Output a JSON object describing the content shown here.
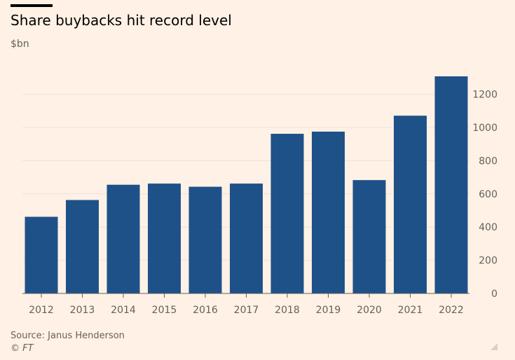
{
  "header": {
    "title": "Share buybacks hit record level",
    "unit": "$bn"
  },
  "footer": {
    "source": "Source: Janus Henderson",
    "credit": "© FT"
  },
  "colors": {
    "background": "#fff1e5",
    "bar": "#1f5189",
    "grid": "#ebe2d9",
    "text": "#66605c"
  },
  "chart_data": {
    "type": "bar",
    "title": "Share buybacks hit record level",
    "ylabel": "$bn",
    "xlabel": "",
    "categories": [
      "2012",
      "2013",
      "2014",
      "2015",
      "2016",
      "2017",
      "2018",
      "2019",
      "2020",
      "2021",
      "2022"
    ],
    "values": [
      462,
      563,
      655,
      662,
      643,
      662,
      962,
      975,
      683,
      1071,
      1308
    ],
    "ylim": [
      0,
      1300
    ],
    "yticks": [
      0,
      200,
      400,
      600,
      800,
      1000,
      1200
    ],
    "yaxis_position": "right",
    "grid": true,
    "legend": "none"
  }
}
